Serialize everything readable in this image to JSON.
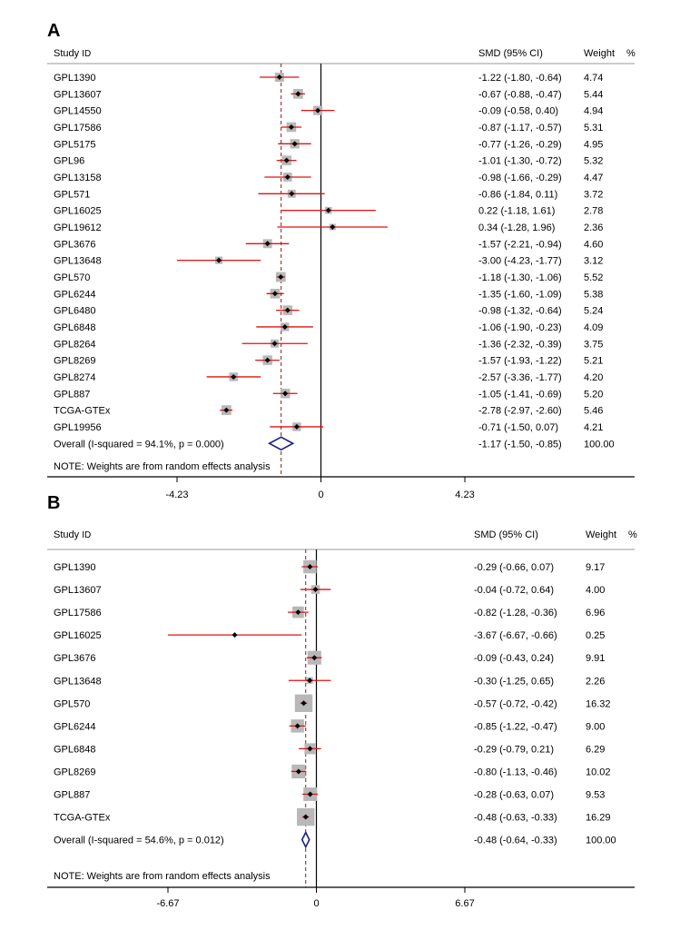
{
  "chart_data": [
    {
      "type": "forest",
      "panel": "A",
      "header": {
        "study": "Study",
        "id": "ID",
        "estimate": "SMD (95% CI)",
        "weight": "Weight",
        "pct": "%"
      },
      "xticks": [
        "-4.23",
        "0",
        "4.23"
      ],
      "xlim": [
        -4.23,
        4.23
      ],
      "pooled_reference": -1.17,
      "note": "NOTE: Weights are from random effects analysis",
      "studies": [
        {
          "label": "GPL1390",
          "smd": -1.22,
          "lo": -1.8,
          "hi": -0.64,
          "ci_text": "-1.22 (-1.80, -0.64)",
          "weight": "4.74"
        },
        {
          "label": "GPL13607",
          "smd": -0.67,
          "lo": -0.88,
          "hi": -0.47,
          "ci_text": "-0.67 (-0.88, -0.47)",
          "weight": "5.44"
        },
        {
          "label": "GPL14550",
          "smd": -0.09,
          "lo": -0.58,
          "hi": 0.4,
          "ci_text": "-0.09 (-0.58, 0.40)",
          "weight": "4.94"
        },
        {
          "label": "GPL17586",
          "smd": -0.87,
          "lo": -1.17,
          "hi": -0.57,
          "ci_text": "-0.87 (-1.17, -0.57)",
          "weight": "5.31"
        },
        {
          "label": "GPL5175",
          "smd": -0.77,
          "lo": -1.26,
          "hi": -0.29,
          "ci_text": "-0.77 (-1.26, -0.29)",
          "weight": "4.95"
        },
        {
          "label": "GPL96",
          "smd": -1.01,
          "lo": -1.3,
          "hi": -0.72,
          "ci_text": "-1.01 (-1.30, -0.72)",
          "weight": "5.32"
        },
        {
          "label": "GPL13158",
          "smd": -0.98,
          "lo": -1.66,
          "hi": -0.29,
          "ci_text": "-0.98 (-1.66, -0.29)",
          "weight": "4.47"
        },
        {
          "label": "GPL571",
          "smd": -0.86,
          "lo": -1.84,
          "hi": 0.11,
          "ci_text": "-0.86 (-1.84, 0.11)",
          "weight": "3.72"
        },
        {
          "label": "GPL16025",
          "smd": 0.22,
          "lo": -1.18,
          "hi": 1.61,
          "ci_text": "0.22 (-1.18, 1.61)",
          "weight": "2.78"
        },
        {
          "label": "GPL19612",
          "smd": 0.34,
          "lo": -1.28,
          "hi": 1.96,
          "ci_text": "0.34 (-1.28, 1.96)",
          "weight": "2.36"
        },
        {
          "label": "GPL3676",
          "smd": -1.57,
          "lo": -2.21,
          "hi": -0.94,
          "ci_text": "-1.57 (-2.21, -0.94)",
          "weight": "4.60"
        },
        {
          "label": "GPL13648",
          "smd": -3.0,
          "lo": -4.23,
          "hi": -1.77,
          "ci_text": "-3.00 (-4.23, -1.77)",
          "weight": "3.12"
        },
        {
          "label": "GPL570",
          "smd": -1.18,
          "lo": -1.3,
          "hi": -1.06,
          "ci_text": "-1.18 (-1.30, -1.06)",
          "weight": "5.52"
        },
        {
          "label": "GPL6244",
          "smd": -1.35,
          "lo": -1.6,
          "hi": -1.09,
          "ci_text": "-1.35 (-1.60, -1.09)",
          "weight": "5.38"
        },
        {
          "label": "GPL6480",
          "smd": -0.98,
          "lo": -1.32,
          "hi": -0.64,
          "ci_text": "-0.98 (-1.32, -0.64)",
          "weight": "5.24"
        },
        {
          "label": "GPL6848",
          "smd": -1.06,
          "lo": -1.9,
          "hi": -0.23,
          "ci_text": "-1.06 (-1.90, -0.23)",
          "weight": "4.09"
        },
        {
          "label": "GPL8264",
          "smd": -1.36,
          "lo": -2.32,
          "hi": -0.39,
          "ci_text": "-1.36 (-2.32, -0.39)",
          "weight": "3.75"
        },
        {
          "label": "GPL8269",
          "smd": -1.57,
          "lo": -1.93,
          "hi": -1.22,
          "ci_text": "-1.57 (-1.93, -1.22)",
          "weight": "5.21"
        },
        {
          "label": "GPL8274",
          "smd": -2.57,
          "lo": -3.36,
          "hi": -1.77,
          "ci_text": "-2.57 (-3.36, -1.77)",
          "weight": "4.20"
        },
        {
          "label": "GPL887",
          "smd": -1.05,
          "lo": -1.41,
          "hi": -0.69,
          "ci_text": "-1.05 (-1.41, -0.69)",
          "weight": "5.20"
        },
        {
          "label": "TCGA-GTEx",
          "smd": -2.78,
          "lo": -2.97,
          "hi": -2.6,
          "ci_text": "-2.78 (-2.97, -2.60)",
          "weight": "5.46"
        },
        {
          "label": "GPL19956",
          "smd": -0.71,
          "lo": -1.5,
          "hi": 0.07,
          "ci_text": "-0.71 (-1.50, 0.07)",
          "weight": "4.21"
        }
      ],
      "overall": {
        "label": "Overall  (I-squared = 94.1%, p = 0.000)",
        "smd": -1.17,
        "lo": -1.5,
        "hi": -0.85,
        "ci_text": "-1.17 (-1.50, -0.85)",
        "weight": "100.00"
      }
    },
    {
      "type": "forest",
      "panel": "B",
      "header": {
        "study": "Study",
        "id": "ID",
        "estimate": "SMD (95% CI)",
        "weight": "Weight",
        "pct": "%"
      },
      "xticks": [
        "-6.67",
        "0",
        "6.67"
      ],
      "xlim": [
        -6.67,
        6.67
      ],
      "pooled_reference": -0.48,
      "note": "NOTE: Weights are from random effects analysis",
      "studies": [
        {
          "label": "GPL1390",
          "smd": -0.29,
          "lo": -0.66,
          "hi": 0.07,
          "ci_text": "-0.29 (-0.66, 0.07)",
          "weight": "9.17"
        },
        {
          "label": "GPL13607",
          "smd": -0.04,
          "lo": -0.72,
          "hi": 0.64,
          "ci_text": "-0.04 (-0.72, 0.64)",
          "weight": "4.00"
        },
        {
          "label": "GPL17586",
          "smd": -0.82,
          "lo": -1.28,
          "hi": -0.36,
          "ci_text": "-0.82 (-1.28, -0.36)",
          "weight": "6.96"
        },
        {
          "label": "GPL16025",
          "smd": -3.67,
          "lo": -6.67,
          "hi": -0.66,
          "ci_text": "-3.67 (-6.67, -0.66)",
          "weight": "0.25"
        },
        {
          "label": "GPL3676",
          "smd": -0.09,
          "lo": -0.43,
          "hi": 0.24,
          "ci_text": "-0.09 (-0.43, 0.24)",
          "weight": "9.91"
        },
        {
          "label": "GPL13648",
          "smd": -0.3,
          "lo": -1.25,
          "hi": 0.65,
          "ci_text": "-0.30 (-1.25, 0.65)",
          "weight": "2.26"
        },
        {
          "label": "GPL570",
          "smd": -0.57,
          "lo": -0.72,
          "hi": -0.42,
          "ci_text": "-0.57 (-0.72, -0.42)",
          "weight": "16.32"
        },
        {
          "label": "GPL6244",
          "smd": -0.85,
          "lo": -1.22,
          "hi": -0.47,
          "ci_text": "-0.85 (-1.22, -0.47)",
          "weight": "9.00"
        },
        {
          "label": "GPL6848",
          "smd": -0.29,
          "lo": -0.79,
          "hi": 0.21,
          "ci_text": "-0.29 (-0.79, 0.21)",
          "weight": "6.29"
        },
        {
          "label": "GPL8269",
          "smd": -0.8,
          "lo": -1.13,
          "hi": -0.46,
          "ci_text": "-0.80 (-1.13, -0.46)",
          "weight": "10.02"
        },
        {
          "label": "GPL887",
          "smd": -0.28,
          "lo": -0.63,
          "hi": 0.07,
          "ci_text": "-0.28 (-0.63, 0.07)",
          "weight": "9.53"
        },
        {
          "label": "TCGA-GTEx",
          "smd": -0.48,
          "lo": -0.63,
          "hi": -0.33,
          "ci_text": "-0.48 (-0.63, -0.33)",
          "weight": "16.29"
        }
      ],
      "overall": {
        "label": "Overall  (I-squared = 54.6%, p = 0.012)",
        "smd": -0.48,
        "lo": -0.64,
        "hi": -0.33,
        "ci_text": "-0.48 (-0.64, -0.33)",
        "weight": "100.00"
      }
    }
  ],
  "colors": {
    "ci_line": "#e3110f",
    "box": "#b8b8b8",
    "diamond": "#1a237e",
    "ref_dash": "#8b1a1a",
    "axis": "#000000",
    "rule": "#9a9a9a"
  }
}
